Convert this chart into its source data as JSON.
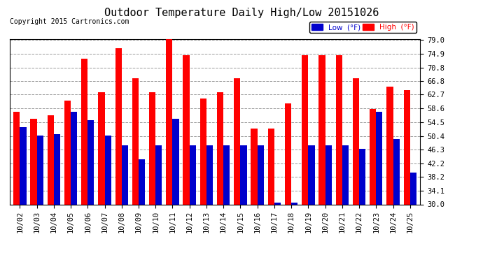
{
  "title": "Outdoor Temperature Daily High/Low 20151026",
  "copyright": "Copyright 2015 Cartronics.com",
  "legend_low": "Low  (°F)",
  "legend_high": "High  (°F)",
  "dates": [
    "10/02",
    "10/03",
    "10/04",
    "10/05",
    "10/06",
    "10/07",
    "10/08",
    "10/09",
    "10/10",
    "10/11",
    "10/12",
    "10/13",
    "10/14",
    "10/15",
    "10/16",
    "10/17",
    "10/18",
    "10/19",
    "10/20",
    "10/21",
    "10/22",
    "10/23",
    "10/24",
    "10/25"
  ],
  "high": [
    57.5,
    55.5,
    56.5,
    61.0,
    73.5,
    63.5,
    76.5,
    67.5,
    63.5,
    79.5,
    74.5,
    61.5,
    63.5,
    67.5,
    52.5,
    52.5,
    60.0,
    74.5,
    74.5,
    74.5,
    67.5,
    58.5,
    65.0,
    64.0
  ],
  "low": [
    53.0,
    50.5,
    51.0,
    57.5,
    55.0,
    50.5,
    47.5,
    43.5,
    47.5,
    55.5,
    47.5,
    47.5,
    47.5,
    47.5,
    47.5,
    30.5,
    30.5,
    47.5,
    47.5,
    47.5,
    46.5,
    57.5,
    49.5,
    39.5
  ],
  "ylim_min": 30.0,
  "ylim_max": 79.0,
  "yticks": [
    30.0,
    34.1,
    38.2,
    42.2,
    46.3,
    50.4,
    54.5,
    58.6,
    62.7,
    66.8,
    70.8,
    74.9,
    79.0
  ],
  "bar_color_low": "#0000cc",
  "bar_color_high": "#ff0000",
  "background_color": "#ffffff",
  "grid_color": "#999999",
  "title_color": "#000000",
  "title_fontsize": 11,
  "copyright_fontsize": 7,
  "tick_fontsize": 7.5
}
